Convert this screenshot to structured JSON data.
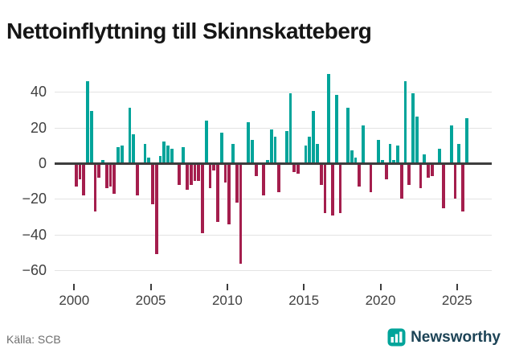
{
  "title": "Nettoinflyttning till Skinnskatteberg",
  "source": "Källa: SCB",
  "brand": {
    "name": "Newsworthy",
    "icon": "bar-chart-icon"
  },
  "colors": {
    "positive": "#00a49a",
    "negative": "#a41e4d",
    "zero_line": "#3d3d3d",
    "gridline": "#e3e3e3",
    "brand_text": "#1c4356",
    "brand_icon": "#00a49a"
  },
  "chart_data": {
    "type": "bar",
    "title": "Nettoinflyttning till Skinnskatteberg",
    "xlabel": "",
    "ylabel": "",
    "frequency": "quarterly",
    "start": "2000 Q1",
    "end": "2025 Q3",
    "x_tick_labels": [
      "2000",
      "2005",
      "2010",
      "2015",
      "2020",
      "2025"
    ],
    "y_ticks": [
      40,
      20,
      0,
      -20,
      -40,
      -60
    ],
    "y_tick_labels": [
      "40",
      "20",
      "0",
      "−20",
      "−40",
      "−60"
    ],
    "ylim": [
      -67,
      53
    ],
    "grid": "horizontal",
    "legend": "none",
    "values": [
      -13,
      -9,
      -18,
      46,
      29,
      -27,
      -8,
      2,
      -14,
      -13,
      -17,
      9,
      10,
      0,
      31,
      16,
      -18,
      0,
      11,
      3,
      -23,
      -51,
      4,
      12,
      10,
      8,
      0,
      -12,
      9,
      -15,
      -12,
      -10,
      -10,
      -39,
      24,
      -14,
      -4,
      -33,
      17,
      -11,
      -34,
      11,
      -22,
      -56,
      0,
      23,
      13,
      -7,
      0,
      -18,
      2,
      19,
      15,
      -16,
      0,
      18,
      39,
      -5,
      -6,
      0,
      10,
      15,
      29,
      11,
      -12,
      -28,
      50,
      -29,
      38,
      -28,
      0,
      31,
      7,
      3,
      -13,
      21,
      0,
      -16,
      0,
      13,
      2,
      -9,
      11,
      2,
      10,
      -20,
      46,
      -12,
      39,
      26,
      -14,
      5,
      -8,
      -7,
      0,
      8,
      -25,
      0,
      21,
      -20,
      11,
      -27,
      25
    ]
  }
}
